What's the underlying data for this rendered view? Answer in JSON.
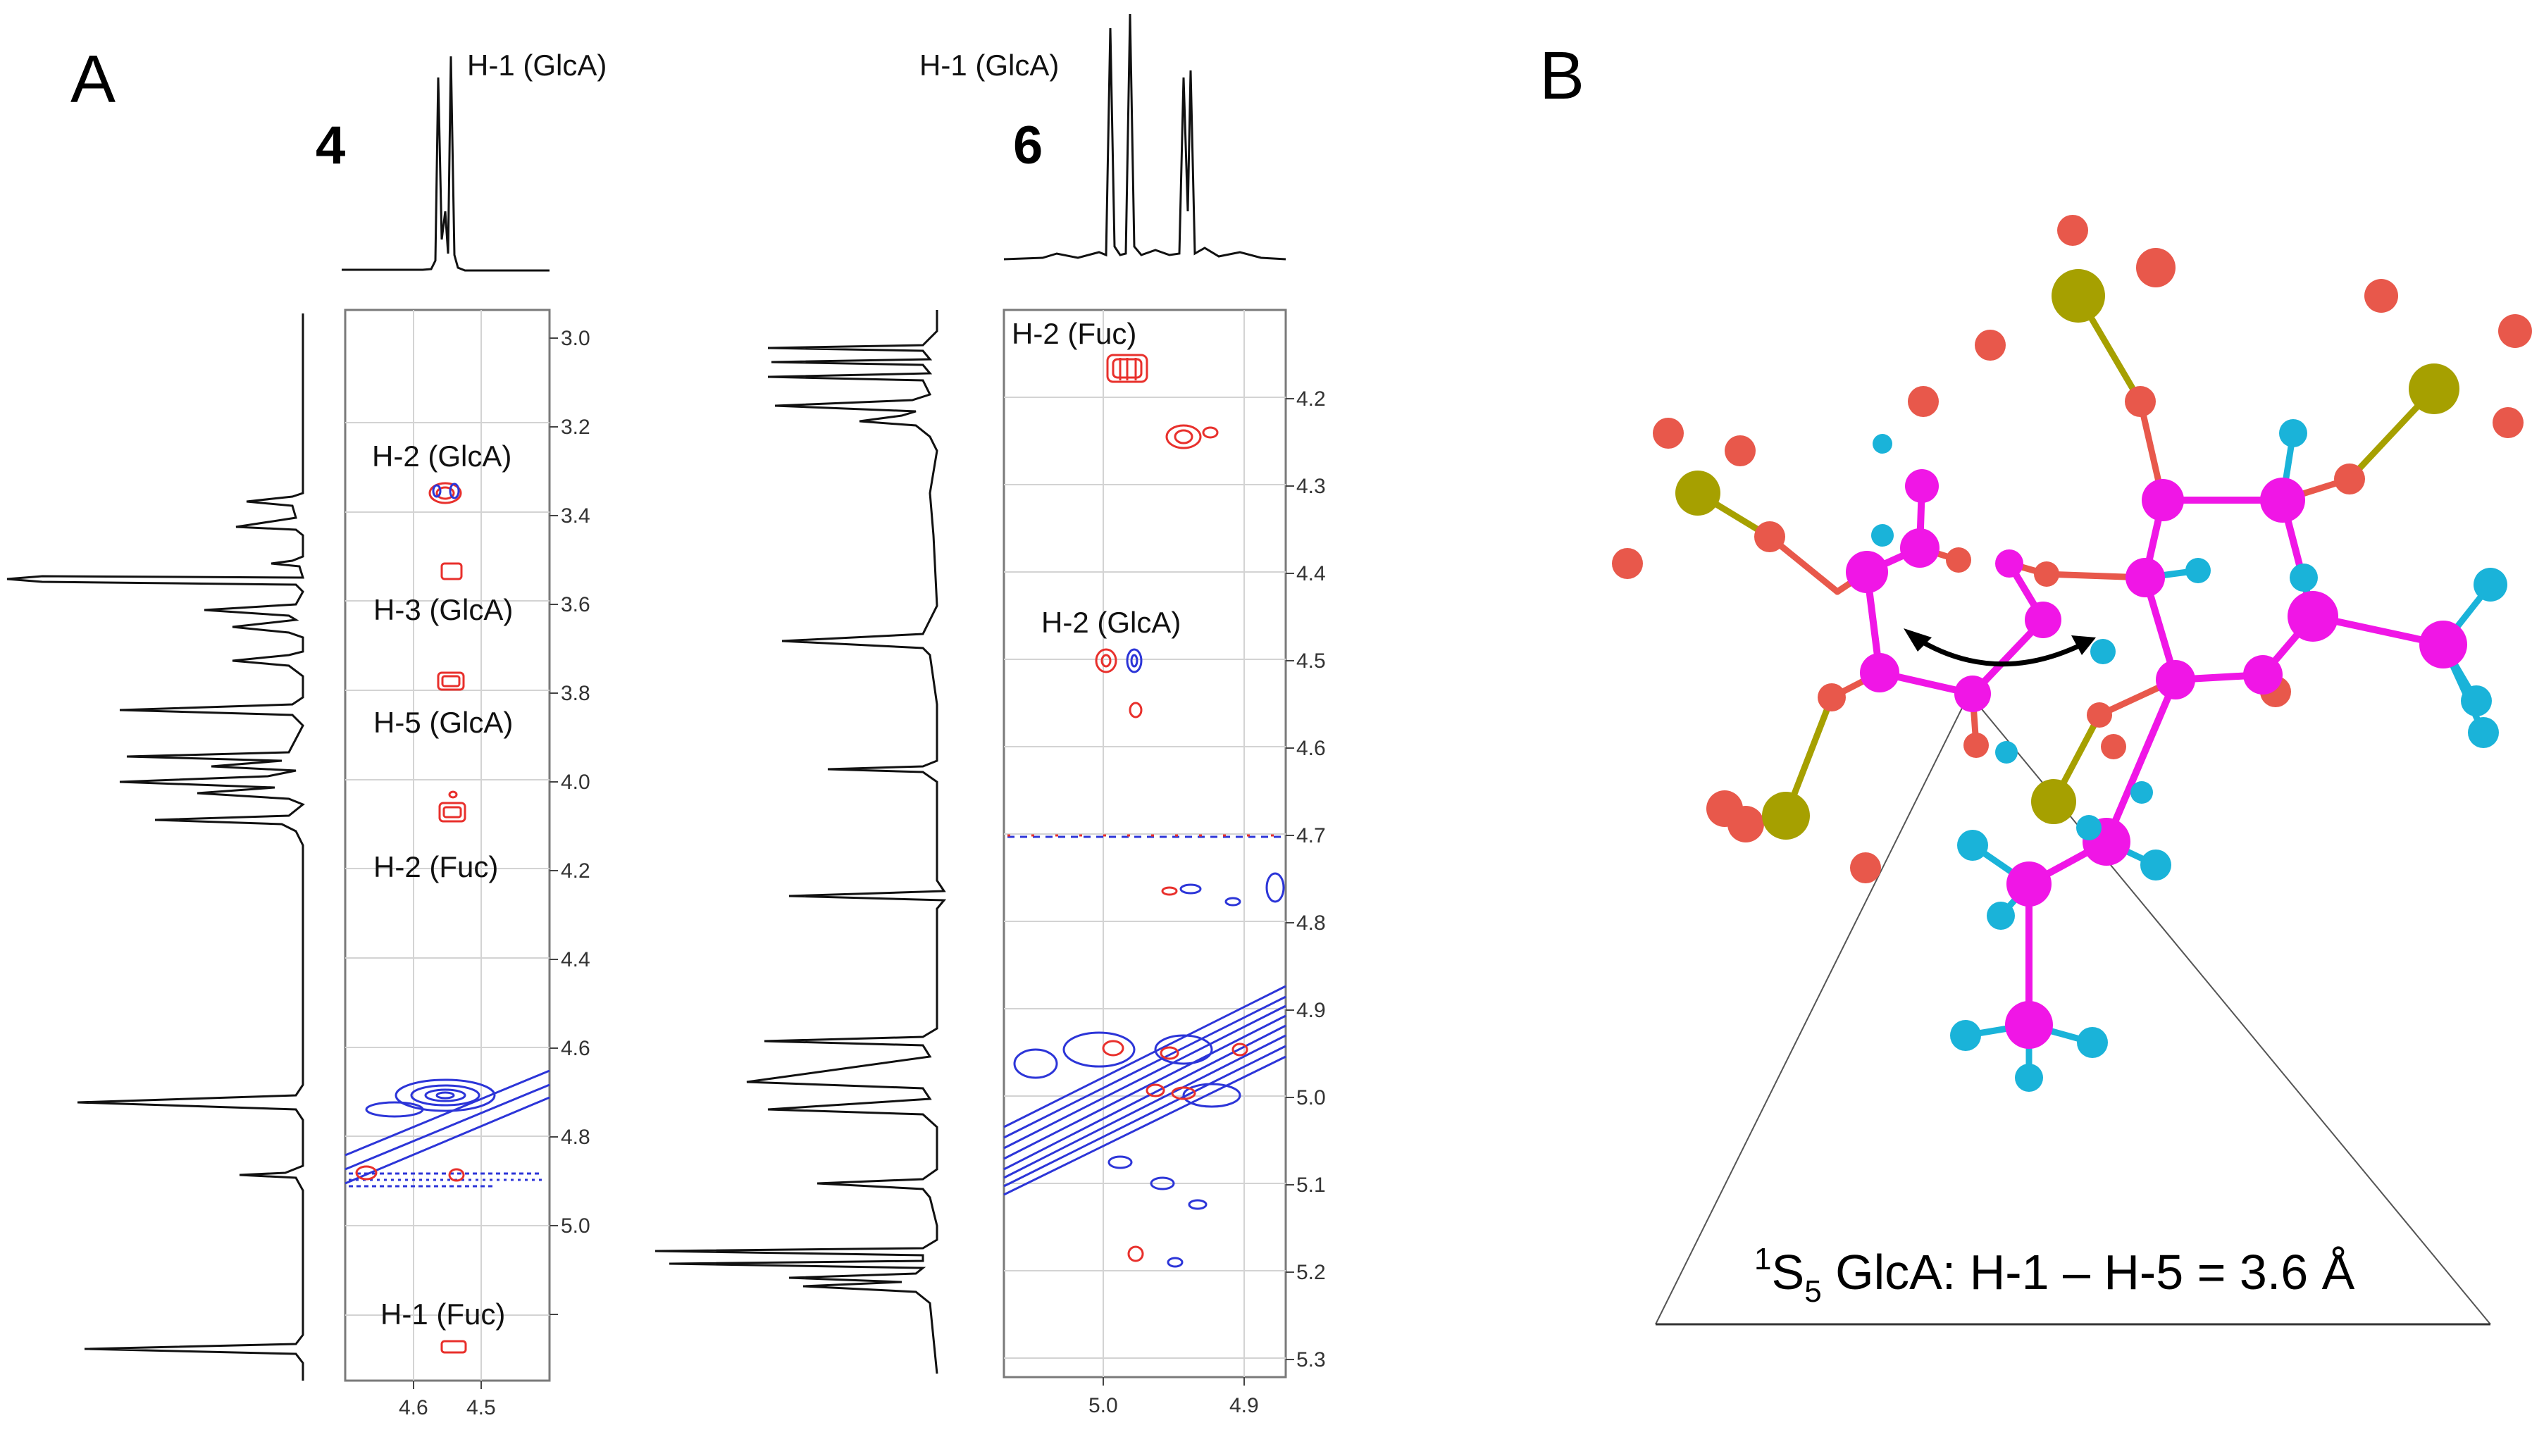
{
  "panelA": {
    "letter": "A",
    "spectra": [
      {
        "compound": "4",
        "top_label": "H-1 (GlcA)",
        "y_ticks": [
          "3.0",
          "3.2",
          "3.4",
          "3.6",
          "3.8",
          "4.0",
          "4.2",
          "4.4",
          "4.6",
          "4.8",
          "5.0"
        ],
        "x_ticks": [
          "4.6",
          "4.5"
        ],
        "labels": [
          "H-2 (GlcA)",
          "H-3 (GlcA)",
          "H-5 (GlcA)",
          "H-2 (Fuc)",
          "H-1 (Fuc)"
        ]
      },
      {
        "compound": "6",
        "top_label": "H-1 (GlcA)",
        "y_ticks": [
          "4.2",
          "4.3",
          "4.4",
          "4.5",
          "4.6",
          "4.7",
          "4.8",
          "4.9",
          "5.0",
          "5.1",
          "5.2",
          "5.3"
        ],
        "x_ticks": [
          "5.0",
          "4.9"
        ],
        "labels": [
          "H-2 (Fuc)",
          "H-2 (GlcA)"
        ]
      }
    ]
  },
  "panelB": {
    "letter": "B",
    "caption_sup": "1",
    "caption_s": "S",
    "caption_sub": "5",
    "caption_rest": " GlcA: H-1 – H-5 = 3.6 Å",
    "atom_colors": {
      "carbon": "#f016e6",
      "oxygen": "#e8584b",
      "sulfur": "#a6a000",
      "hydrogen": "#1ab3d9"
    }
  }
}
